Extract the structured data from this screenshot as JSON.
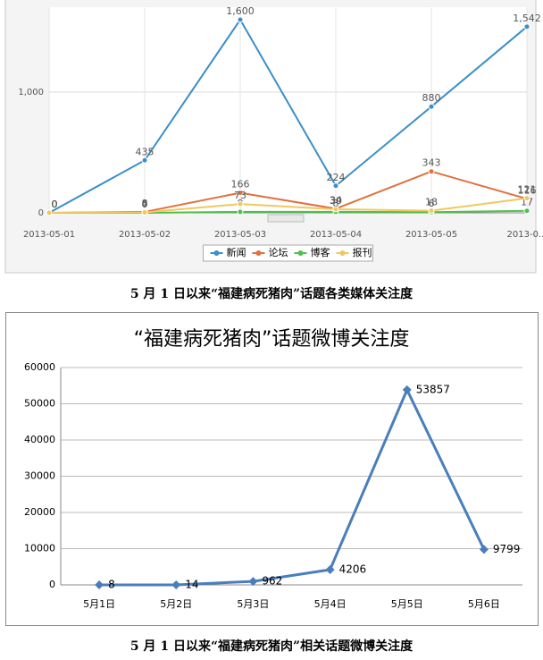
{
  "chart_data": [
    {
      "type": "line",
      "categories": [
        "2013-05-01",
        "2013-05-02",
        "2013-05-03",
        "2013-05-04",
        "2013-05-05",
        "2013-0..."
      ],
      "series": [
        {
          "name": "新闻",
          "color": "#3a8fc9",
          "values": [
            0,
            435,
            1600,
            224,
            880,
            1542
          ],
          "value_labels": [
            "0",
            "435",
            "1,600",
            "224",
            "880",
            "1,542"
          ]
        },
        {
          "name": "论坛",
          "color": "#e0703f",
          "values": [
            0,
            8,
            166,
            34,
            343,
            116
          ]
        },
        {
          "name": "博客",
          "color": "#4cc14c",
          "values": [
            0,
            0,
            8,
            8,
            6,
            17
          ]
        },
        {
          "name": "报刊",
          "color": "#f0c860",
          "values": [
            0,
            4,
            73,
            30,
            18,
            121
          ]
        }
      ],
      "ylim": [
        0,
        1700
      ],
      "yticks": [
        0,
        {
          "value": 1000,
          "label": "1,000"
        }
      ],
      "grid": true,
      "legend": "bottom"
    },
    {
      "type": "line",
      "title": "“福建病死猪肉”话题微博关注度",
      "categories": [
        "5月1日",
        "5月2日",
        "5月3日",
        "5月4日",
        "5月5日",
        "5月6日"
      ],
      "series": [
        {
          "name": "微博",
          "color": "#4a7ebb",
          "values": [
            8,
            14,
            962,
            4206,
            53857,
            9799
          ]
        }
      ],
      "ylim": [
        0,
        60000
      ],
      "yticks": [
        0,
        10000,
        20000,
        30000,
        40000,
        50000,
        60000
      ],
      "grid": true
    }
  ],
  "captions": [
    "5 月 1 日以来“福建病死猪肉”话题各类媒体关注度",
    "5 月 1 日以来“福建病死猪肉”相关话题微博关注度"
  ]
}
